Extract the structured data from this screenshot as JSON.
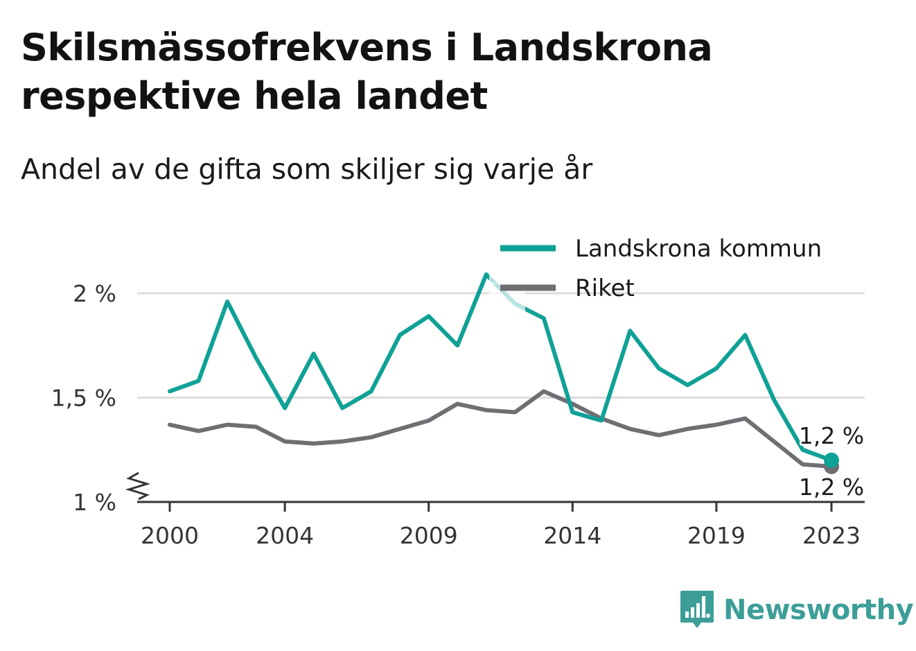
{
  "header": {
    "title": "Skilsmässofrekvens i Landskrona respektive hela landet",
    "subtitle": "Andel av de gifta som skiljer sig varje år"
  },
  "brand": {
    "name": "Newsworthy",
    "color": "#3d9e98",
    "icon": "bar-chart-speech-bubble-icon"
  },
  "chart_data": {
    "type": "line",
    "x": [
      2000,
      2001,
      2002,
      2003,
      2004,
      2005,
      2006,
      2007,
      2008,
      2009,
      2010,
      2011,
      2012,
      2013,
      2014,
      2015,
      2016,
      2017,
      2018,
      2019,
      2020,
      2021,
      2022,
      2023
    ],
    "x_ticks": [
      2000,
      2004,
      2009,
      2014,
      2019,
      2023
    ],
    "x_tick_labels": [
      "2000",
      "2004",
      "2009",
      "2014",
      "2019",
      "2023"
    ],
    "y_ticks": [
      1,
      1.5,
      2
    ],
    "y_tick_labels": [
      "1 %",
      "1,5 %",
      "2 %"
    ],
    "ylim": [
      1,
      2
    ],
    "y_axis_break": true,
    "grid": true,
    "legend_position": "top-right",
    "series": [
      {
        "name": "Landskrona kommun",
        "color": "#0fa195",
        "values": [
          1.53,
          1.58,
          1.96,
          1.69,
          1.45,
          1.71,
          1.45,
          1.53,
          1.8,
          1.89,
          1.75,
          2.09,
          1.95,
          1.88,
          1.43,
          1.39,
          1.82,
          1.64,
          1.56,
          1.64,
          1.8,
          1.49,
          1.25,
          1.2
        ],
        "end_label": "1,2 %"
      },
      {
        "name": "Riket",
        "color": "#6e6e73",
        "values": [
          1.37,
          1.34,
          1.37,
          1.36,
          1.29,
          1.28,
          1.29,
          1.31,
          1.35,
          1.39,
          1.47,
          1.44,
          1.43,
          1.53,
          1.47,
          1.4,
          1.35,
          1.32,
          1.35,
          1.37,
          1.4,
          1.29,
          1.18,
          1.17
        ],
        "end_label": "1,2 %"
      }
    ]
  }
}
